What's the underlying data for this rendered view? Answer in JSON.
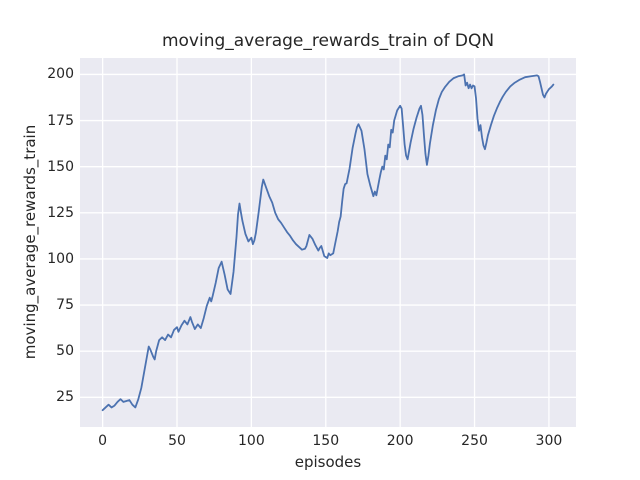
{
  "figure": {
    "background": "#ffffff"
  },
  "chart_data": {
    "type": "line",
    "title": "moving_average_rewards_train of DQN",
    "xlabel": "episodes",
    "ylabel": "moving_average_rewards_train",
    "legend": "none",
    "grid": true,
    "style": {
      "axes_background": "#eaeaf2",
      "grid_color": "#ffffff",
      "line_color": "#4c72b0",
      "line_width": 1.8,
      "text_color": "#262626"
    },
    "x_ticks": [
      0,
      50,
      100,
      150,
      200,
      250,
      300
    ],
    "y_ticks": [
      25,
      50,
      75,
      100,
      125,
      150,
      175,
      200
    ],
    "xlim": [
      -15.2,
      318.2
    ],
    "ylim": [
      8.9,
      208.9
    ],
    "series": [
      {
        "name": "moving_average_rewards_train",
        "points": [
          [
            0,
            18
          ],
          [
            2,
            19.5
          ],
          [
            4,
            21
          ],
          [
            6,
            19.5
          ],
          [
            8,
            20.5
          ],
          [
            10,
            22.5
          ],
          [
            12,
            24
          ],
          [
            14,
            22.5
          ],
          [
            16,
            23
          ],
          [
            18,
            23.5
          ],
          [
            20,
            21
          ],
          [
            22,
            19.5
          ],
          [
            24,
            24
          ],
          [
            26,
            30
          ],
          [
            28,
            39
          ],
          [
            30,
            48
          ],
          [
            31,
            52.5
          ],
          [
            32,
            51
          ],
          [
            34,
            47
          ],
          [
            35,
            45.5
          ],
          [
            36,
            50
          ],
          [
            38,
            56
          ],
          [
            40,
            57.5
          ],
          [
            42,
            56
          ],
          [
            44,
            59
          ],
          [
            46,
            57.5
          ],
          [
            48,
            61.5
          ],
          [
            50,
            63
          ],
          [
            51,
            60.5
          ],
          [
            53,
            64
          ],
          [
            55,
            66.5
          ],
          [
            57,
            64.5
          ],
          [
            59,
            68.5
          ],
          [
            60,
            66
          ],
          [
            62,
            62
          ],
          [
            64,
            64.5
          ],
          [
            66,
            62.5
          ],
          [
            68,
            68
          ],
          [
            70,
            74.5
          ],
          [
            72,
            79
          ],
          [
            73,
            77
          ],
          [
            74,
            80
          ],
          [
            76,
            87
          ],
          [
            78,
            95
          ],
          [
            80,
            98.5
          ],
          [
            81,
            95
          ],
          [
            82,
            91.5
          ],
          [
            84,
            83.5
          ],
          [
            86,
            81
          ],
          [
            88,
            93
          ],
          [
            90,
            112
          ],
          [
            91,
            124
          ],
          [
            92,
            130
          ],
          [
            93,
            125
          ],
          [
            94,
            120.5
          ],
          [
            96,
            113.5
          ],
          [
            98,
            109.5
          ],
          [
            100,
            111.5
          ],
          [
            101,
            108
          ],
          [
            102,
            110
          ],
          [
            103,
            114
          ],
          [
            105,
            126
          ],
          [
            107,
            139
          ],
          [
            108,
            143
          ],
          [
            110,
            138.5
          ],
          [
            112,
            134
          ],
          [
            114,
            130.5
          ],
          [
            116,
            125
          ],
          [
            118,
            121.5
          ],
          [
            120,
            119.5
          ],
          [
            122,
            117
          ],
          [
            124,
            114.5
          ],
          [
            126,
            112.5
          ],
          [
            128,
            110
          ],
          [
            130,
            108
          ],
          [
            132,
            106.5
          ],
          [
            134,
            105
          ],
          [
            136,
            105.5
          ],
          [
            137,
            107
          ],
          [
            139,
            113
          ],
          [
            141,
            111
          ],
          [
            143,
            107.5
          ],
          [
            145,
            104.5
          ],
          [
            146,
            106
          ],
          [
            147,
            107
          ],
          [
            149,
            101.5
          ],
          [
            151,
            100.5
          ],
          [
            152,
            103
          ],
          [
            153,
            102
          ],
          [
            155,
            103
          ],
          [
            156,
            107
          ],
          [
            158,
            115
          ],
          [
            159,
            120
          ],
          [
            160,
            123
          ],
          [
            161,
            131
          ],
          [
            162,
            138
          ],
          [
            163,
            140.5
          ],
          [
            164,
            141
          ],
          [
            166,
            149
          ],
          [
            168,
            160
          ],
          [
            170,
            168
          ],
          [
            171,
            171.5
          ],
          [
            172,
            173
          ],
          [
            174,
            169.5
          ],
          [
            176,
            159.5
          ],
          [
            178,
            146
          ],
          [
            180,
            139.5
          ],
          [
            182,
            134
          ],
          [
            183,
            136.5
          ],
          [
            184,
            134.5
          ],
          [
            186,
            143
          ],
          [
            187,
            147
          ],
          [
            188,
            150
          ],
          [
            189,
            148.5
          ],
          [
            190,
            156
          ],
          [
            191,
            154
          ],
          [
            192,
            162
          ],
          [
            193,
            160.5
          ],
          [
            194,
            170
          ],
          [
            195,
            168.5
          ],
          [
            196,
            175
          ],
          [
            198,
            180.5
          ],
          [
            200,
            183
          ],
          [
            201,
            181.5
          ],
          [
            202,
            172
          ],
          [
            203,
            162
          ],
          [
            204,
            156
          ],
          [
            205,
            154
          ],
          [
            207,
            163
          ],
          [
            209,
            170.5
          ],
          [
            211,
            176.5
          ],
          [
            213,
            181.5
          ],
          [
            214,
            183
          ],
          [
            215,
            178
          ],
          [
            216,
            167
          ],
          [
            217,
            157
          ],
          [
            218,
            151
          ],
          [
            219,
            156
          ],
          [
            220,
            162.5
          ],
          [
            222,
            172.5
          ],
          [
            224,
            180.5
          ],
          [
            226,
            186.5
          ],
          [
            228,
            190.5
          ],
          [
            230,
            193
          ],
          [
            233,
            196
          ],
          [
            236,
            198
          ],
          [
            239,
            199
          ],
          [
            242,
            199.5
          ],
          [
            243,
            200
          ],
          [
            244,
            194
          ],
          [
            245,
            195.5
          ],
          [
            246,
            192.5
          ],
          [
            247,
            194.5
          ],
          [
            248,
            192.5
          ],
          [
            249,
            194
          ],
          [
            250,
            193.5
          ],
          [
            251,
            187
          ],
          [
            252,
            176
          ],
          [
            253,
            169.5
          ],
          [
            254,
            172.5
          ],
          [
            255,
            166
          ],
          [
            256,
            161.5
          ],
          [
            257,
            159.5
          ],
          [
            258,
            163
          ],
          [
            259,
            167
          ],
          [
            261,
            172.5
          ],
          [
            263,
            177.5
          ],
          [
            265,
            181.5
          ],
          [
            267,
            185
          ],
          [
            269,
            188
          ],
          [
            271,
            190.5
          ],
          [
            274,
            193.5
          ],
          [
            277,
            195.5
          ],
          [
            280,
            197
          ],
          [
            284,
            198.5
          ],
          [
            288,
            199
          ],
          [
            292,
            199.5
          ],
          [
            293,
            199
          ],
          [
            294,
            196
          ],
          [
            295,
            192.5
          ],
          [
            296,
            189
          ],
          [
            297,
            187.5
          ],
          [
            298,
            189.5
          ],
          [
            300,
            192
          ],
          [
            302,
            193.5
          ],
          [
            303,
            194.5
          ]
        ]
      }
    ]
  }
}
